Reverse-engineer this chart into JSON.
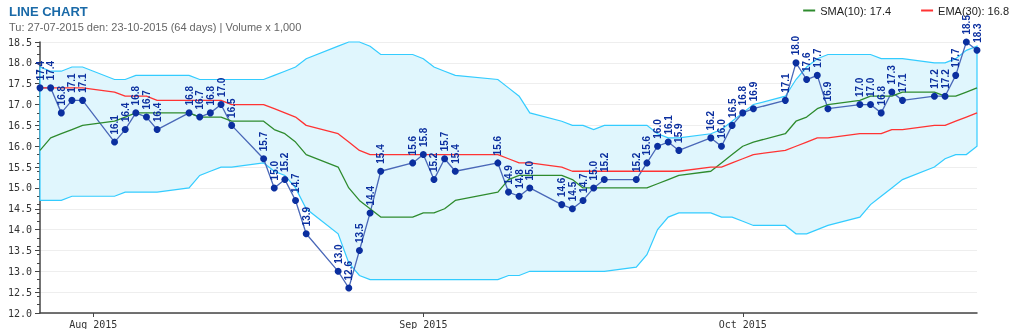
{
  "chart_data": {
    "type": "line",
    "title": "LINE CHART",
    "subtitle": "Tu: 27-07-2015 den: 23-10-2015 (64 days) | Volume x 1,000",
    "x": [
      "2015-07-27",
      "2015-07-28",
      "2015-07-29",
      "2015-07-30",
      "2015-07-31",
      "2015-08-03",
      "2015-08-04",
      "2015-08-05",
      "2015-08-06",
      "2015-08-07",
      "2015-08-10",
      "2015-08-11",
      "2015-08-12",
      "2015-08-13",
      "2015-08-14",
      "2015-08-17",
      "2015-08-18",
      "2015-08-19",
      "2015-08-20",
      "2015-08-21",
      "2015-08-24",
      "2015-08-25",
      "2015-08-26",
      "2015-08-27",
      "2015-08-28",
      "2015-08-31",
      "2015-09-01",
      "2015-09-02",
      "2015-09-03",
      "2015-09-04",
      "2015-09-08",
      "2015-09-09",
      "2015-09-10",
      "2015-09-11",
      "2015-09-14",
      "2015-09-15",
      "2015-09-16",
      "2015-09-17",
      "2015-09-18",
      "2015-09-21",
      "2015-09-22",
      "2015-09-23",
      "2015-09-24",
      "2015-09-25",
      "2015-09-28",
      "2015-09-29",
      "2015-09-30",
      "2015-10-01",
      "2015-10-02",
      "2015-10-05",
      "2015-10-06",
      "2015-10-07",
      "2015-10-08",
      "2015-10-09",
      "2015-10-12",
      "2015-10-13",
      "2015-10-14",
      "2015-10-15",
      "2015-10-16",
      "2015-10-19",
      "2015-10-20",
      "2015-10-21",
      "2015-10-22",
      "2015-10-23"
    ],
    "series": [
      {
        "color": "#0b2f9f",
        "marker": "circle",
        "values": [
          17.4,
          17.4,
          16.8,
          17.1,
          17.1,
          16.1,
          16.4,
          16.8,
          16.7,
          16.4,
          16.8,
          16.7,
          16.8,
          17.0,
          16.5,
          15.7,
          15.0,
          15.2,
          14.7,
          13.9,
          13.0,
          12.6,
          13.5,
          14.4,
          15.4,
          15.6,
          15.8,
          15.2,
          15.7,
          15.4,
          15.6,
          14.9,
          14.8,
          15.0,
          14.6,
          14.5,
          14.7,
          15.0,
          15.2,
          15.2,
          15.6,
          16.0,
          16.1,
          15.9,
          16.2,
          16.0,
          16.5,
          16.8,
          16.9,
          17.1,
          18.0,
          17.6,
          17.7,
          16.9,
          17.0,
          17.0,
          16.8,
          17.3,
          17.1,
          17.2,
          17.2,
          17.7,
          18.5,
          18.3
        ],
        "value_labels": [
          "17.4",
          "17.4",
          "16.8",
          "17.1",
          "17.1",
          "16.1",
          "16.4",
          "16.8",
          "16.7",
          "16.4",
          "16.8",
          "16.7",
          "16.8",
          "17.0",
          "16.5",
          "15.7",
          "15.0",
          "15.2",
          "14.7",
          "13.9",
          "13.0",
          "12.6",
          "13.5",
          "14.4",
          "15.4",
          "15.6",
          "15.8",
          "15.2",
          "15.7",
          "15.4",
          "15.6",
          "14.9",
          "14.8",
          "15.0",
          "14.6",
          "14.5",
          "14.7",
          "15.0",
          "15.2",
          "15.2",
          "15.6",
          "16.0",
          "16.1",
          "15.9",
          "16.2",
          "16.0",
          "16.5",
          "16.8",
          "16.9",
          "17.1",
          "18.0",
          "17.6",
          "17.7",
          "16.9",
          "17.0",
          "17.0",
          "16.8",
          "17.3",
          "17.1",
          "17.2",
          "17.2",
          "17.7",
          "18.5",
          "18.3"
        ],
        "upper": [
          17.9,
          17.8,
          17.8,
          17.9,
          17.9,
          17.6,
          17.6,
          17.7,
          17.7,
          17.7,
          17.7,
          17.6,
          17.6,
          17.6,
          17.6,
          17.6,
          17.7,
          17.8,
          17.9,
          18.1,
          18.4,
          18.5,
          18.5,
          18.4,
          18.2,
          18.2,
          18.1,
          17.9,
          17.8,
          17.7,
          17.6,
          17.4,
          17.2,
          16.8,
          16.6,
          16.5,
          16.5,
          16.4,
          16.5,
          16.5,
          16.5,
          16.3,
          16.2,
          16.2,
          16.3,
          16.4,
          16.6,
          16.8,
          17.0,
          17.2,
          17.6,
          17.9,
          18.1,
          18.2,
          18.2,
          18.2,
          18.1,
          18.1,
          18.1,
          18.0,
          18.0,
          18.1,
          18.3,
          18.4
        ],
        "lower": [
          14.7,
          14.7,
          14.7,
          14.8,
          14.8,
          14.8,
          14.9,
          14.9,
          14.9,
          14.9,
          15.0,
          15.3,
          15.4,
          15.5,
          15.5,
          15.6,
          15.4,
          15.3,
          15.0,
          14.5,
          13.9,
          13.2,
          12.9,
          12.8,
          12.8,
          12.8,
          12.8,
          12.8,
          12.8,
          12.8,
          12.8,
          12.9,
          12.9,
          13.0,
          13.0,
          13.0,
          13.0,
          13.0,
          13.0,
          13.1,
          13.4,
          14.0,
          14.3,
          14.4,
          14.4,
          14.3,
          14.3,
          14.2,
          14.1,
          14.1,
          13.9,
          13.9,
          14.0,
          14.1,
          14.3,
          14.6,
          14.8,
          15.0,
          15.2,
          15.5,
          15.7,
          15.8,
          15.8,
          16.0
        ]
      },
      {
        "name": "SMA(10): 17.4",
        "color": "#2e8b2e",
        "marker": "none",
        "values": [
          15.9,
          16.2,
          16.3,
          16.4,
          16.5,
          16.6,
          16.7,
          16.8,
          16.8,
          16.8,
          16.8,
          16.7,
          16.7,
          16.7,
          16.6,
          16.6,
          16.4,
          16.3,
          16.1,
          15.8,
          15.5,
          15.0,
          14.7,
          14.5,
          14.3,
          14.3,
          14.4,
          14.4,
          14.5,
          14.7,
          14.9,
          15.2,
          15.3,
          15.3,
          15.3,
          15.2,
          15.0,
          15.0,
          15.0,
          15.0,
          15.0,
          15.1,
          15.2,
          15.3,
          15.4,
          15.6,
          15.8,
          16.0,
          16.1,
          16.3,
          16.6,
          16.7,
          16.9,
          17.0,
          17.1,
          17.2,
          17.2,
          17.2,
          17.3,
          17.3,
          17.2,
          17.2,
          17.3,
          17.4
        ]
      },
      {
        "name": "EMA(30): 16.8",
        "color": "#ff3333",
        "marker": "none",
        "values": [
          17.4,
          17.4,
          17.4,
          17.4,
          17.4,
          17.3,
          17.2,
          17.2,
          17.2,
          17.1,
          17.1,
          17.1,
          17.1,
          17.1,
          17.0,
          17.0,
          16.9,
          16.8,
          16.7,
          16.5,
          16.3,
          16.1,
          15.9,
          15.8,
          15.8,
          15.8,
          15.8,
          15.8,
          15.8,
          15.8,
          15.8,
          15.7,
          15.6,
          15.6,
          15.5,
          15.4,
          15.4,
          15.4,
          15.4,
          15.4,
          15.4,
          15.4,
          15.4,
          15.4,
          15.5,
          15.5,
          15.6,
          15.7,
          15.8,
          15.9,
          16.0,
          16.1,
          16.2,
          16.2,
          16.3,
          16.3,
          16.3,
          16.4,
          16.4,
          16.5,
          16.5,
          16.6,
          16.7,
          16.8
        ]
      }
    ],
    "xlim": [
      "2015-07-27",
      "2015-10-23"
    ],
    "xticks": [
      {
        "value": "2015-08-01",
        "label": "Aug 2015"
      },
      {
        "value": "2015-09-01",
        "label": "Sep 2015"
      },
      {
        "value": "2015-10-01",
        "label": "Oct 2015"
      }
    ],
    "ylim": [
      12,
      18.5
    ],
    "yticks": [
      {
        "value": 12,
        "label": "12.0"
      },
      {
        "value": 12.5,
        "label": "12.5"
      },
      {
        "value": 13,
        "label": "13.0"
      },
      {
        "value": 13.5,
        "label": "13.5"
      },
      {
        "value": 14,
        "label": "14.0"
      },
      {
        "value": 14.5,
        "label": "14.5"
      },
      {
        "value": 15,
        "label": "15.0"
      },
      {
        "value": 15.5,
        "label": "15.5"
      },
      {
        "value": 16,
        "label": "16.0"
      },
      {
        "value": 16.5,
        "label": "16.5"
      },
      {
        "value": 17,
        "label": "17.0"
      },
      {
        "value": 17.5,
        "label": "17.5"
      },
      {
        "value": 18,
        "label": "18.0"
      },
      {
        "value": 18.5,
        "label": "18.5"
      }
    ],
    "grid": "y",
    "legend": "top right"
  }
}
